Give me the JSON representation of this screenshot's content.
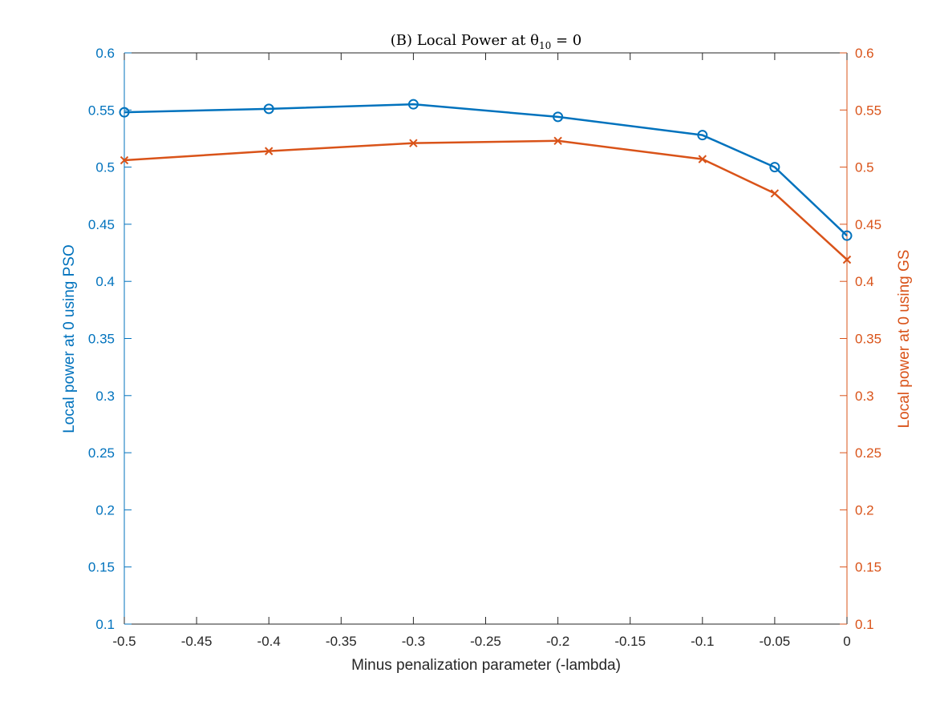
{
  "chart_data": {
    "type": "line",
    "title": "(B) Local Power at θ",
    "title_subscript": "10",
    "title_suffix": " = 0",
    "xlabel": "Minus penalization parameter (-lambda)",
    "ylabel_left": "Local power at 0 using PSO",
    "ylabel_right": "Local power at 0 using GS",
    "xlim": [
      -0.5,
      0
    ],
    "ylim": [
      0.1,
      0.6
    ],
    "grid": false,
    "x_ticks": [
      -0.5,
      -0.45,
      -0.4,
      -0.35,
      -0.3,
      -0.25,
      -0.2,
      -0.15,
      -0.1,
      -0.05,
      0
    ],
    "x_tick_labels": [
      "-0.5",
      "-0.45",
      "-0.4",
      "-0.35",
      "-0.3",
      "-0.25",
      "-0.2",
      "-0.15",
      "-0.1",
      "-0.05",
      "0"
    ],
    "y_ticks": [
      0.1,
      0.15,
      0.2,
      0.25,
      0.3,
      0.35,
      0.4,
      0.45,
      0.5,
      0.55,
      0.6
    ],
    "y_tick_labels": [
      "0.1",
      "0.15",
      "0.2",
      "0.25",
      "0.3",
      "0.35",
      "0.4",
      "0.45",
      "0.5",
      "0.55",
      "0.6"
    ],
    "series": [
      {
        "axis": "left",
        "marker": "circle",
        "color": "#0072BD",
        "x": [
          -0.5,
          -0.4,
          -0.3,
          -0.2,
          -0.1,
          -0.05,
          0
        ],
        "values": [
          0.548,
          0.551,
          0.555,
          0.544,
          0.528,
          0.5,
          0.44
        ]
      },
      {
        "axis": "right",
        "marker": "x",
        "color": "#D95319",
        "x": [
          -0.5,
          -0.4,
          -0.3,
          -0.2,
          -0.1,
          -0.05,
          0
        ],
        "values": [
          0.506,
          0.514,
          0.521,
          0.523,
          0.507,
          0.477,
          0.419
        ]
      }
    ]
  }
}
